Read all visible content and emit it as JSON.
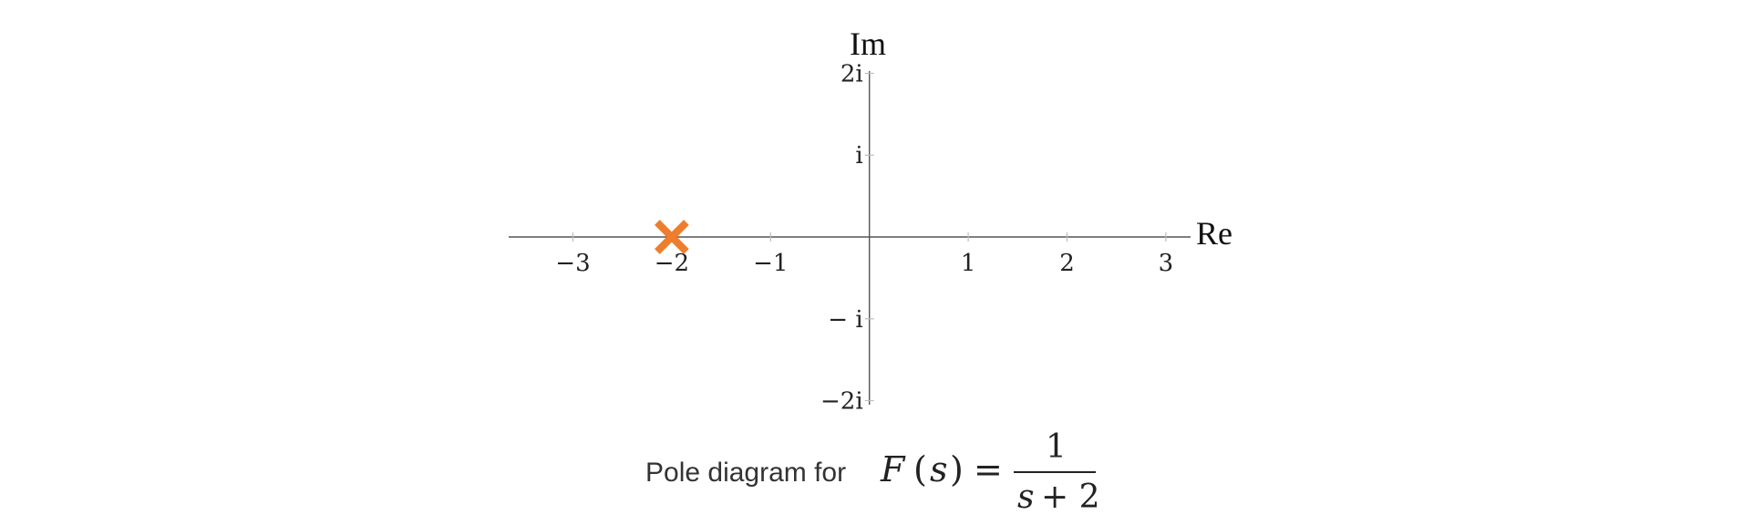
{
  "chart_data": {
    "type": "scatter",
    "xlabel": "Re",
    "ylabel": "Im",
    "xlim": [
      -3.65,
      3.25
    ],
    "ylim": [
      -2.05,
      2.05
    ],
    "x_ticks": [
      -3,
      -2,
      -1,
      1,
      2,
      3
    ],
    "x_tick_labels": [
      "−3",
      "−2",
      "−1",
      "1",
      "2",
      "3"
    ],
    "y_ticks": [
      2,
      1,
      -1,
      -2
    ],
    "y_tick_labels": [
      "2i",
      "i",
      "− i",
      "−2i"
    ],
    "grid": false,
    "poles": [
      {
        "re": -2,
        "im": 0
      }
    ],
    "marker_color": "#ef7d2c",
    "axis_color": "#555555"
  },
  "caption": {
    "text": "Pole diagram for",
    "function_name": "F",
    "open_paren": "(",
    "variable": "s",
    "close_paren": ")",
    "equals": "=",
    "numerator": "1",
    "denominator_var": "s",
    "denominator_rest": "+ 2"
  }
}
